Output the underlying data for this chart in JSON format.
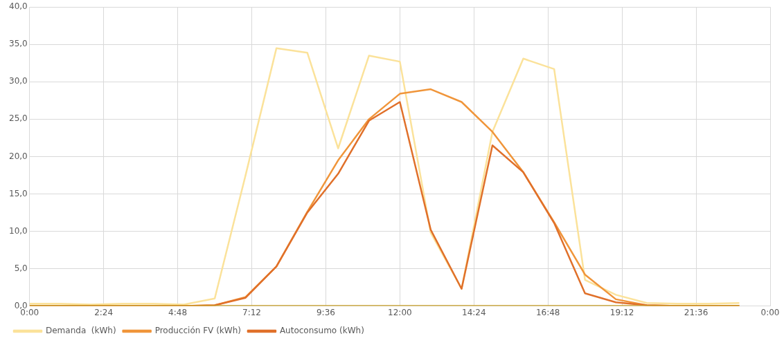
{
  "chart_data": {
    "type": "line",
    "x": [
      0,
      1,
      2,
      3,
      4,
      5,
      6,
      7,
      8,
      9,
      10,
      11,
      12,
      13,
      14,
      15,
      16,
      17,
      18,
      19,
      20,
      21,
      22,
      23
    ],
    "series": [
      {
        "name": "Demanda  (kWh)",
        "color": "#fbe29a",
        "values": [
          0.3,
          0.3,
          0.2,
          0.3,
          0.3,
          0.2,
          1.0,
          17.5,
          34.5,
          33.9,
          21.1,
          33.5,
          32.7,
          9.8,
          2.3,
          23.3,
          33.1,
          31.7,
          3.5,
          1.5,
          0.4,
          0.3,
          0.3,
          0.4
        ]
      },
      {
        "name": "Producción FV (kWh)",
        "color": "#f0953a",
        "values": [
          0,
          0,
          0,
          0,
          0,
          0,
          0.1,
          1.2,
          5.3,
          12.6,
          19.5,
          25.0,
          28.4,
          29.0,
          27.3,
          23.3,
          17.9,
          11.2,
          4.2,
          0.9,
          0.1,
          0,
          0,
          0
        ]
      },
      {
        "name": "Autoconsumo (kWh)",
        "color": "#e0702a",
        "values": [
          0,
          0,
          0,
          0,
          0,
          0,
          0.1,
          1.1,
          5.3,
          12.5,
          17.7,
          24.8,
          27.3,
          10.2,
          2.3,
          21.5,
          17.9,
          11.1,
          1.7,
          0.5,
          0.1,
          0,
          0,
          0
        ]
      },
      {
        "color": "#c8a02a",
        "values": [
          0,
          0,
          0,
          0,
          0,
          0,
          0,
          0,
          0,
          0,
          0,
          0,
          0,
          0,
          0,
          0,
          0,
          0,
          0,
          0,
          0,
          0,
          0,
          0
        ]
      }
    ],
    "xlim": [
      0,
      24
    ],
    "xticks": [
      {
        "value": 0,
        "label": "0:00"
      },
      {
        "value": 2.4,
        "label": "2:24"
      },
      {
        "value": 4.8,
        "label": "4:48"
      },
      {
        "value": 7.2,
        "label": "7:12"
      },
      {
        "value": 9.6,
        "label": "9:36"
      },
      {
        "value": 12,
        "label": "12:00"
      },
      {
        "value": 14.4,
        "label": "14:24"
      },
      {
        "value": 16.8,
        "label": "16:48"
      },
      {
        "value": 19.2,
        "label": "19:12"
      },
      {
        "value": 21.6,
        "label": "21:36"
      },
      {
        "value": 24,
        "label": "0:00"
      }
    ],
    "ylim": [
      0,
      40
    ],
    "yticks": [
      {
        "value": 0,
        "label": "0,0"
      },
      {
        "value": 5,
        "label": "5,0"
      },
      {
        "value": 10,
        "label": "10,0"
      },
      {
        "value": 15,
        "label": "15,0"
      },
      {
        "value": 20,
        "label": "20,0"
      },
      {
        "value": 25,
        "label": "25,0"
      },
      {
        "value": 30,
        "label": "30,0"
      },
      {
        "value": 35,
        "label": "35,0"
      },
      {
        "value": 40,
        "label": "40,0"
      }
    ],
    "grid": true,
    "legend": "bottom left",
    "marker": "none",
    "line_style": "solid"
  }
}
